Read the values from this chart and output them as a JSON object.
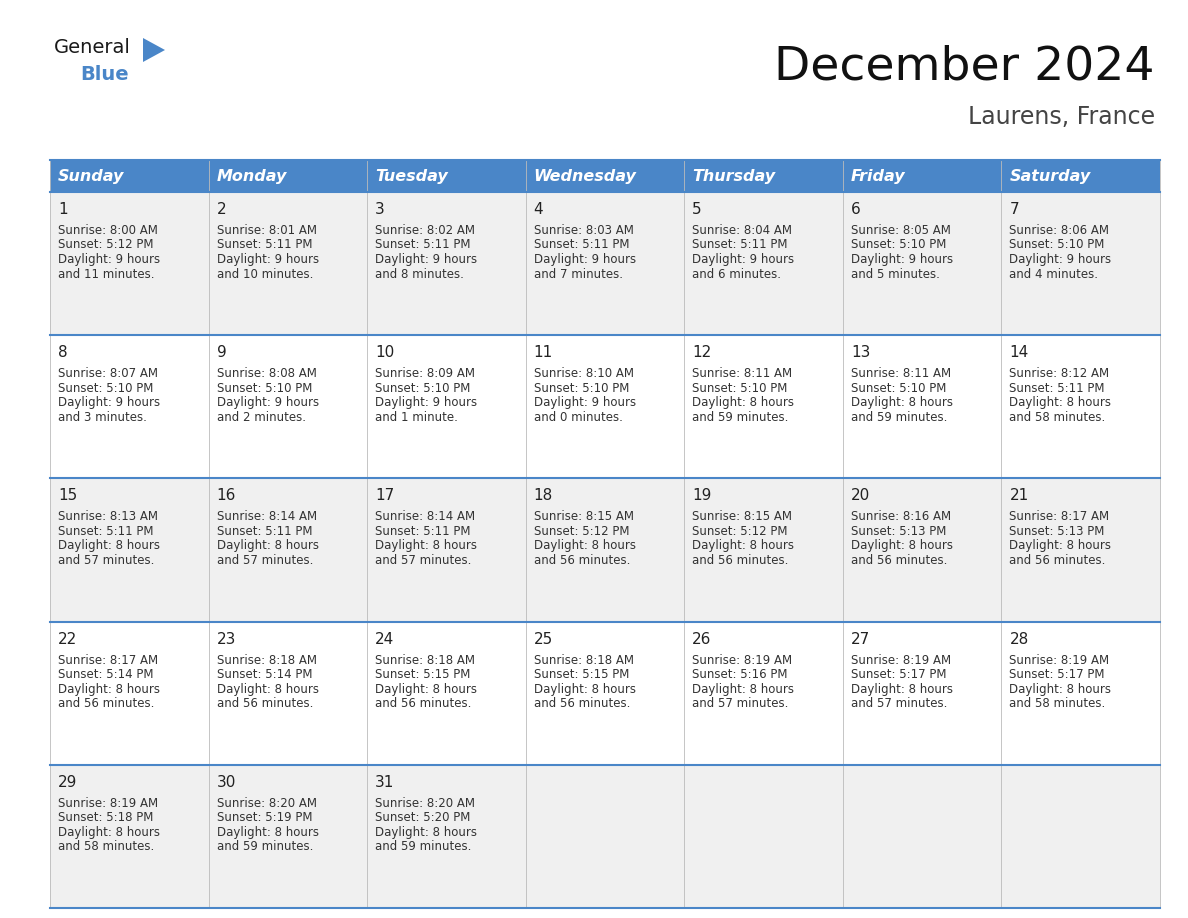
{
  "title": "December 2024",
  "subtitle": "Laurens, France",
  "header_bg_color": "#4a86c8",
  "header_text_color": "#FFFFFF",
  "cell_bg_odd": "#f0f0f0",
  "cell_bg_even": "#FFFFFF",
  "grid_color": "#4a86c8",
  "day_headers": [
    "Sunday",
    "Monday",
    "Tuesday",
    "Wednesday",
    "Thursday",
    "Friday",
    "Saturday"
  ],
  "days": [
    {
      "day": 1,
      "col": 0,
      "row": 0,
      "sunrise": "8:00 AM",
      "sunset": "5:12 PM",
      "daylight_h": "9 hours",
      "daylight_m": "and 11 minutes."
    },
    {
      "day": 2,
      "col": 1,
      "row": 0,
      "sunrise": "8:01 AM",
      "sunset": "5:11 PM",
      "daylight_h": "9 hours",
      "daylight_m": "and 10 minutes."
    },
    {
      "day": 3,
      "col": 2,
      "row": 0,
      "sunrise": "8:02 AM",
      "sunset": "5:11 PM",
      "daylight_h": "9 hours",
      "daylight_m": "and 8 minutes."
    },
    {
      "day": 4,
      "col": 3,
      "row": 0,
      "sunrise": "8:03 AM",
      "sunset": "5:11 PM",
      "daylight_h": "9 hours",
      "daylight_m": "and 7 minutes."
    },
    {
      "day": 5,
      "col": 4,
      "row": 0,
      "sunrise": "8:04 AM",
      "sunset": "5:11 PM",
      "daylight_h": "9 hours",
      "daylight_m": "and 6 minutes."
    },
    {
      "day": 6,
      "col": 5,
      "row": 0,
      "sunrise": "8:05 AM",
      "sunset": "5:10 PM",
      "daylight_h": "9 hours",
      "daylight_m": "and 5 minutes."
    },
    {
      "day": 7,
      "col": 6,
      "row": 0,
      "sunrise": "8:06 AM",
      "sunset": "5:10 PM",
      "daylight_h": "9 hours",
      "daylight_m": "and 4 minutes."
    },
    {
      "day": 8,
      "col": 0,
      "row": 1,
      "sunrise": "8:07 AM",
      "sunset": "5:10 PM",
      "daylight_h": "9 hours",
      "daylight_m": "and 3 minutes."
    },
    {
      "day": 9,
      "col": 1,
      "row": 1,
      "sunrise": "8:08 AM",
      "sunset": "5:10 PM",
      "daylight_h": "9 hours",
      "daylight_m": "and 2 minutes."
    },
    {
      "day": 10,
      "col": 2,
      "row": 1,
      "sunrise": "8:09 AM",
      "sunset": "5:10 PM",
      "daylight_h": "9 hours",
      "daylight_m": "and 1 minute."
    },
    {
      "day": 11,
      "col": 3,
      "row": 1,
      "sunrise": "8:10 AM",
      "sunset": "5:10 PM",
      "daylight_h": "9 hours",
      "daylight_m": "and 0 minutes."
    },
    {
      "day": 12,
      "col": 4,
      "row": 1,
      "sunrise": "8:11 AM",
      "sunset": "5:10 PM",
      "daylight_h": "8 hours",
      "daylight_m": "and 59 minutes."
    },
    {
      "day": 13,
      "col": 5,
      "row": 1,
      "sunrise": "8:11 AM",
      "sunset": "5:10 PM",
      "daylight_h": "8 hours",
      "daylight_m": "and 59 minutes."
    },
    {
      "day": 14,
      "col": 6,
      "row": 1,
      "sunrise": "8:12 AM",
      "sunset": "5:11 PM",
      "daylight_h": "8 hours",
      "daylight_m": "and 58 minutes."
    },
    {
      "day": 15,
      "col": 0,
      "row": 2,
      "sunrise": "8:13 AM",
      "sunset": "5:11 PM",
      "daylight_h": "8 hours",
      "daylight_m": "and 57 minutes."
    },
    {
      "day": 16,
      "col": 1,
      "row": 2,
      "sunrise": "8:14 AM",
      "sunset": "5:11 PM",
      "daylight_h": "8 hours",
      "daylight_m": "and 57 minutes."
    },
    {
      "day": 17,
      "col": 2,
      "row": 2,
      "sunrise": "8:14 AM",
      "sunset": "5:11 PM",
      "daylight_h": "8 hours",
      "daylight_m": "and 57 minutes."
    },
    {
      "day": 18,
      "col": 3,
      "row": 2,
      "sunrise": "8:15 AM",
      "sunset": "5:12 PM",
      "daylight_h": "8 hours",
      "daylight_m": "and 56 minutes."
    },
    {
      "day": 19,
      "col": 4,
      "row": 2,
      "sunrise": "8:15 AM",
      "sunset": "5:12 PM",
      "daylight_h": "8 hours",
      "daylight_m": "and 56 minutes."
    },
    {
      "day": 20,
      "col": 5,
      "row": 2,
      "sunrise": "8:16 AM",
      "sunset": "5:13 PM",
      "daylight_h": "8 hours",
      "daylight_m": "and 56 minutes."
    },
    {
      "day": 21,
      "col": 6,
      "row": 2,
      "sunrise": "8:17 AM",
      "sunset": "5:13 PM",
      "daylight_h": "8 hours",
      "daylight_m": "and 56 minutes."
    },
    {
      "day": 22,
      "col": 0,
      "row": 3,
      "sunrise": "8:17 AM",
      "sunset": "5:14 PM",
      "daylight_h": "8 hours",
      "daylight_m": "and 56 minutes."
    },
    {
      "day": 23,
      "col": 1,
      "row": 3,
      "sunrise": "8:18 AM",
      "sunset": "5:14 PM",
      "daylight_h": "8 hours",
      "daylight_m": "and 56 minutes."
    },
    {
      "day": 24,
      "col": 2,
      "row": 3,
      "sunrise": "8:18 AM",
      "sunset": "5:15 PM",
      "daylight_h": "8 hours",
      "daylight_m": "and 56 minutes."
    },
    {
      "day": 25,
      "col": 3,
      "row": 3,
      "sunrise": "8:18 AM",
      "sunset": "5:15 PM",
      "daylight_h": "8 hours",
      "daylight_m": "and 56 minutes."
    },
    {
      "day": 26,
      "col": 4,
      "row": 3,
      "sunrise": "8:19 AM",
      "sunset": "5:16 PM",
      "daylight_h": "8 hours",
      "daylight_m": "and 57 minutes."
    },
    {
      "day": 27,
      "col": 5,
      "row": 3,
      "sunrise": "8:19 AM",
      "sunset": "5:17 PM",
      "daylight_h": "8 hours",
      "daylight_m": "and 57 minutes."
    },
    {
      "day": 28,
      "col": 6,
      "row": 3,
      "sunrise": "8:19 AM",
      "sunset": "5:17 PM",
      "daylight_h": "8 hours",
      "daylight_m": "and 58 minutes."
    },
    {
      "day": 29,
      "col": 0,
      "row": 4,
      "sunrise": "8:19 AM",
      "sunset": "5:18 PM",
      "daylight_h": "8 hours",
      "daylight_m": "and 58 minutes."
    },
    {
      "day": 30,
      "col": 1,
      "row": 4,
      "sunrise": "8:20 AM",
      "sunset": "5:19 PM",
      "daylight_h": "8 hours",
      "daylight_m": "and 59 minutes."
    },
    {
      "day": 31,
      "col": 2,
      "row": 4,
      "sunrise": "8:20 AM",
      "sunset": "5:20 PM",
      "daylight_h": "8 hours",
      "daylight_m": "and 59 minutes."
    }
  ],
  "num_weeks": 5,
  "logo_triangle_color": "#4a86c8",
  "title_fontsize": 34,
  "subtitle_fontsize": 17,
  "header_fontsize": 11.5,
  "day_num_fontsize": 11,
  "cell_text_fontsize": 8.5
}
